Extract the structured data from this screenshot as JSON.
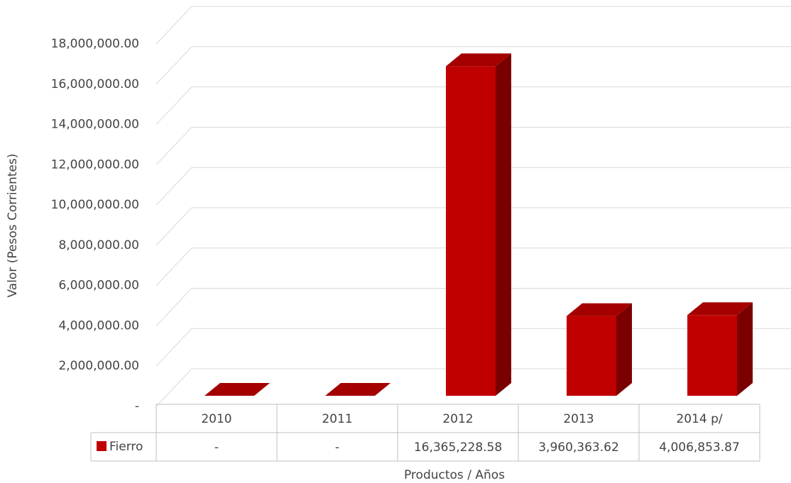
{
  "chart_data": {
    "type": "bar3d",
    "x_label": "Productos / Años",
    "y_label": "Valor (Pesos Corrientes)",
    "categories": [
      "2010",
      "2011",
      "2012",
      "2013",
      "2014 p/"
    ],
    "series": [
      {
        "name": "Fierro",
        "color": "#c00000",
        "values": [
          0,
          0,
          16365228.58,
          3960363.62,
          4006853.87
        ],
        "value_labels": [
          "-",
          "-",
          "16,365,228.58",
          "3,960,363.62",
          "4,006,853.87"
        ]
      }
    ],
    "ylim": [
      0,
      18000000
    ],
    "yticks": [
      {
        "value": 0,
        "label": "-"
      },
      {
        "value": 2000000,
        "label": "2,000,000.00"
      },
      {
        "value": 4000000,
        "label": "4,000,000.00"
      },
      {
        "value": 6000000,
        "label": "6,000,000.00"
      },
      {
        "value": 8000000,
        "label": "8,000,000.00"
      },
      {
        "value": 10000000,
        "label": "10,000,000.00"
      },
      {
        "value": 12000000,
        "label": "12,000,000.00"
      },
      {
        "value": 14000000,
        "label": "14,000,000.00"
      },
      {
        "value": 16000000,
        "label": "16,000,000.00"
      },
      {
        "value": 18000000,
        "label": "18,000,000.00"
      }
    ],
    "grid": true,
    "legend": "table"
  }
}
